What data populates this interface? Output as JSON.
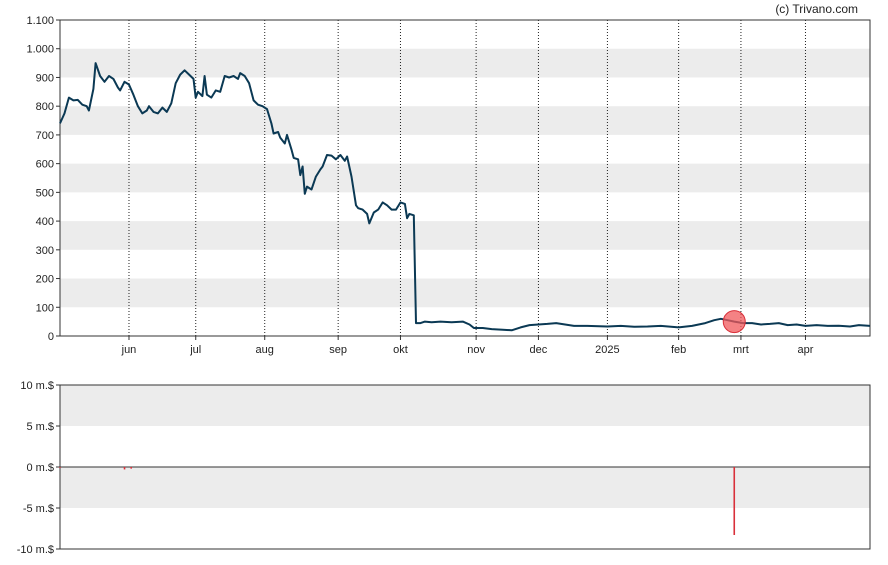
{
  "credit": "(c) Trivano.com",
  "chart_data": [
    {
      "type": "line",
      "title": "",
      "xlabel": "",
      "ylabel": "",
      "x_range": [
        "2024-05-01",
        "2025-04-30"
      ],
      "ylim": [
        0,
        1100
      ],
      "y_ticks": [
        {
          "value": 0,
          "label": "0"
        },
        {
          "value": 100,
          "label": "100"
        },
        {
          "value": 200,
          "label": "200"
        },
        {
          "value": 300,
          "label": "300"
        },
        {
          "value": 400,
          "label": "400"
        },
        {
          "value": 500,
          "label": "500"
        },
        {
          "value": 600,
          "label": "600"
        },
        {
          "value": 700,
          "label": "700"
        },
        {
          "value": 800,
          "label": "800"
        },
        {
          "value": 900,
          "label": "900"
        },
        {
          "value": 1000,
          "label": "1.000"
        },
        {
          "value": 1100,
          "label": "1.100"
        }
      ],
      "x_ticks": [
        {
          "date": "2024-06-01",
          "label": "jun"
        },
        {
          "date": "2024-07-01",
          "label": "jul"
        },
        {
          "date": "2024-08-01",
          "label": "aug"
        },
        {
          "date": "2024-09-03",
          "label": "sep"
        },
        {
          "date": "2024-10-01",
          "label": "okt"
        },
        {
          "date": "2024-11-04",
          "label": "nov"
        },
        {
          "date": "2024-12-02",
          "label": "dec"
        },
        {
          "date": "2025-01-02",
          "label": "2025"
        },
        {
          "date": "2025-02-03",
          "label": "feb"
        },
        {
          "date": "2025-03-03",
          "label": "mrt"
        },
        {
          "date": "2025-04-01",
          "label": "apr"
        }
      ],
      "grid": "alternating horizontal bands, dotted vertical lines",
      "line_color": "#0b3954",
      "highlight_color": "#f0585b",
      "highlight_point": {
        "x": "2025-02-28",
        "y": 50
      },
      "series": [
        {
          "points": [
            [
              "2024-05-01",
              740
            ],
            [
              "2024-05-03",
              775
            ],
            [
              "2024-05-05",
              830
            ],
            [
              "2024-05-07",
              820
            ],
            [
              "2024-05-09",
              822
            ],
            [
              "2024-05-11",
              805
            ],
            [
              "2024-05-13",
              800
            ],
            [
              "2024-05-14",
              785
            ],
            [
              "2024-05-16",
              860
            ],
            [
              "2024-05-17",
              950
            ],
            [
              "2024-05-19",
              905
            ],
            [
              "2024-05-21",
              885
            ],
            [
              "2024-05-23",
              905
            ],
            [
              "2024-05-25",
              895
            ],
            [
              "2024-05-27",
              865
            ],
            [
              "2024-05-28",
              855
            ],
            [
              "2024-05-30",
              885
            ],
            [
              "2024-06-01",
              875
            ],
            [
              "2024-06-03",
              840
            ],
            [
              "2024-06-05",
              800
            ],
            [
              "2024-06-07",
              775
            ],
            [
              "2024-06-09",
              785
            ],
            [
              "2024-06-10",
              800
            ],
            [
              "2024-06-12",
              780
            ],
            [
              "2024-06-14",
              775
            ],
            [
              "2024-06-16",
              795
            ],
            [
              "2024-06-18",
              780
            ],
            [
              "2024-06-20",
              810
            ],
            [
              "2024-06-22",
              880
            ],
            [
              "2024-06-24",
              910
            ],
            [
              "2024-06-26",
              925
            ],
            [
              "2024-06-28",
              910
            ],
            [
              "2024-06-30",
              895
            ],
            [
              "2024-07-01",
              830
            ],
            [
              "2024-07-02",
              850
            ],
            [
              "2024-07-04",
              835
            ],
            [
              "2024-07-05",
              905
            ],
            [
              "2024-07-06",
              840
            ],
            [
              "2024-07-08",
              830
            ],
            [
              "2024-07-10",
              855
            ],
            [
              "2024-07-12",
              850
            ],
            [
              "2024-07-14",
              905
            ],
            [
              "2024-07-16",
              900
            ],
            [
              "2024-07-18",
              905
            ],
            [
              "2024-07-20",
              895
            ],
            [
              "2024-07-21",
              915
            ],
            [
              "2024-07-23",
              905
            ],
            [
              "2024-07-25",
              880
            ],
            [
              "2024-07-27",
              820
            ],
            [
              "2024-07-29",
              805
            ],
            [
              "2024-07-31",
              800
            ],
            [
              "2024-08-02",
              790
            ],
            [
              "2024-08-04",
              740
            ],
            [
              "2024-08-05",
              705
            ],
            [
              "2024-08-07",
              710
            ],
            [
              "2024-08-08",
              690
            ],
            [
              "2024-08-10",
              670
            ],
            [
              "2024-08-11",
              700
            ],
            [
              "2024-08-13",
              650
            ],
            [
              "2024-08-14",
              620
            ],
            [
              "2024-08-16",
              615
            ],
            [
              "2024-08-17",
              560
            ],
            [
              "2024-08-18",
              590
            ],
            [
              "2024-08-19",
              495
            ],
            [
              "2024-08-20",
              520
            ],
            [
              "2024-08-22",
              510
            ],
            [
              "2024-08-24",
              555
            ],
            [
              "2024-08-26",
              580
            ],
            [
              "2024-08-27",
              590
            ],
            [
              "2024-08-29",
              630
            ],
            [
              "2024-08-31",
              628
            ],
            [
              "2024-09-02",
              615
            ],
            [
              "2024-09-04",
              630
            ],
            [
              "2024-09-06",
              610
            ],
            [
              "2024-09-07",
              625
            ],
            [
              "2024-09-09",
              555
            ],
            [
              "2024-09-11",
              455
            ],
            [
              "2024-09-12",
              445
            ],
            [
              "2024-09-14",
              440
            ],
            [
              "2024-09-16",
              425
            ],
            [
              "2024-09-17",
              392
            ],
            [
              "2024-09-19",
              430
            ],
            [
              "2024-09-21",
              440
            ],
            [
              "2024-09-23",
              465
            ],
            [
              "2024-09-25",
              455
            ],
            [
              "2024-09-27",
              440
            ],
            [
              "2024-09-29",
              440
            ],
            [
              "2024-10-01",
              465
            ],
            [
              "2024-10-03",
              460
            ],
            [
              "2024-10-04",
              410
            ],
            [
              "2024-10-05",
              425
            ],
            [
              "2024-10-07",
              420
            ],
            [
              "2024-10-08",
              45
            ],
            [
              "2024-10-10",
              45
            ],
            [
              "2024-10-12",
              50
            ],
            [
              "2024-10-15",
              48
            ],
            [
              "2024-10-19",
              50
            ],
            [
              "2024-10-24",
              48
            ],
            [
              "2024-10-29",
              50
            ],
            [
              "2024-11-01",
              40
            ],
            [
              "2024-11-03",
              28
            ],
            [
              "2024-11-07",
              28
            ],
            [
              "2024-11-11",
              24
            ],
            [
              "2024-11-16",
              22
            ],
            [
              "2024-11-20",
              20
            ],
            [
              "2024-11-24",
              30
            ],
            [
              "2024-11-28",
              38
            ],
            [
              "2024-12-02",
              40
            ],
            [
              "2024-12-06",
              42
            ],
            [
              "2024-12-10",
              45
            ],
            [
              "2024-12-14",
              40
            ],
            [
              "2024-12-18",
              35
            ],
            [
              "2024-12-24",
              35
            ],
            [
              "2025-01-02",
              33
            ],
            [
              "2025-01-08",
              35
            ],
            [
              "2025-01-14",
              32
            ],
            [
              "2025-01-20",
              33
            ],
            [
              "2025-01-26",
              35
            ],
            [
              "2025-02-03",
              30
            ],
            [
              "2025-02-09",
              35
            ],
            [
              "2025-02-15",
              45
            ],
            [
              "2025-02-19",
              55
            ],
            [
              "2025-02-22",
              60
            ],
            [
              "2025-02-25",
              55
            ],
            [
              "2025-02-28",
              50
            ],
            [
              "2025-03-04",
              45
            ],
            [
              "2025-03-08",
              45
            ],
            [
              "2025-03-12",
              40
            ],
            [
              "2025-03-16",
              42
            ],
            [
              "2025-03-20",
              45
            ],
            [
              "2025-03-24",
              38
            ],
            [
              "2025-03-28",
              40
            ],
            [
              "2025-04-01",
              35
            ],
            [
              "2025-04-06",
              38
            ],
            [
              "2025-04-11",
              35
            ],
            [
              "2025-04-16",
              36
            ],
            [
              "2025-04-21",
              33
            ],
            [
              "2025-04-25",
              38
            ],
            [
              "2025-04-30",
              35
            ]
          ]
        }
      ]
    },
    {
      "type": "bar",
      "title": "",
      "xlabel": "",
      "ylabel": "",
      "x_range": [
        "2024-05-01",
        "2025-04-30"
      ],
      "ylim": [
        -10,
        10
      ],
      "y_ticks": [
        {
          "value": 10,
          "label": "10 m.$"
        },
        {
          "value": 5,
          "label": "5 m.$"
        },
        {
          "value": 0,
          "label": "0 m.$"
        },
        {
          "value": -5,
          "label": "-5 m.$"
        },
        {
          "value": -10,
          "label": "-10 m.$"
        }
      ],
      "grid": "alternating horizontal bands",
      "bar_color": "#d9303a",
      "bars": [
        {
          "x": "2024-05-01",
          "value": -0.1
        },
        {
          "x": "2024-05-30",
          "value": -0.3
        },
        {
          "x": "2024-06-02",
          "value": -0.2
        },
        {
          "x": "2025-02-28",
          "value": -8.3
        }
      ]
    }
  ]
}
